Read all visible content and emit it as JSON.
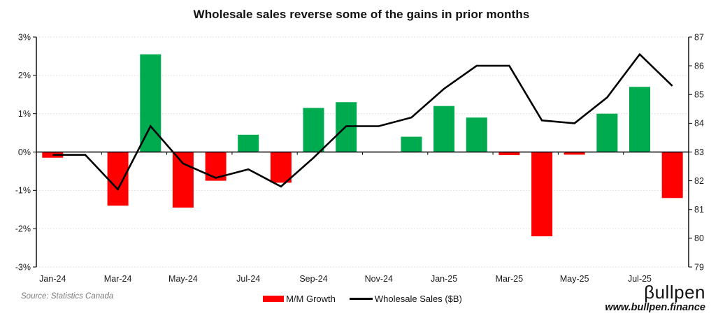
{
  "title": "Wholesale sales reverse some of the gains in prior months",
  "legend": {
    "items": [
      {
        "label": "M/M Growth",
        "swatch": "bar",
        "color": "#ff0000"
      },
      {
        "label": "Wholesale Sales ($B)",
        "swatch": "line",
        "color": "#000000"
      }
    ]
  },
  "footer": {
    "source": "Source: Statistics Canada",
    "brand_name": "βullpen",
    "brand_url": "www.bullpen.finance"
  },
  "colors": {
    "bar_positive": "#00ab50",
    "bar_negative": "#ff0000",
    "line": "#000000",
    "grid": "#d9d9d9",
    "axis": "#000000",
    "tick_text": "#1a1a1a",
    "source_text": "#7a7a7a"
  },
  "chart_data": {
    "type": "bar+line combo",
    "title": "Wholesale sales reverse some of the gains in prior months",
    "categories": [
      "Jan-24",
      "Feb-24",
      "Mar-24",
      "Apr-24",
      "May-24",
      "Jun-24",
      "Jul-24",
      "Aug-24",
      "Sep-24",
      "Oct-24",
      "Nov-24",
      "Dec-24",
      "Jan-25",
      "Feb-25",
      "Mar-25",
      "Apr-25",
      "May-25",
      "Jun-25",
      "Jul-25",
      "Aug-25"
    ],
    "x_axis_tick_labels": [
      "Jan-24",
      "Mar-24",
      "May-24",
      "Jul-24",
      "Sep-24",
      "Nov-24",
      "Jan-25",
      "Mar-25",
      "May-25",
      "Jul-25"
    ],
    "series": [
      {
        "name": "M/M Growth",
        "type": "bar",
        "axis": "left",
        "unit": "%",
        "values": [
          -0.15,
          0.0,
          -1.4,
          2.55,
          -1.45,
          -0.75,
          0.45,
          -0.8,
          1.15,
          1.3,
          0.0,
          0.4,
          1.2,
          0.9,
          -0.08,
          -2.2,
          -0.07,
          1.0,
          1.7,
          -1.2
        ]
      },
      {
        "name": "Wholesale Sales ($B)",
        "type": "line",
        "axis": "right",
        "unit": "$B",
        "values": [
          82.9,
          82.9,
          81.7,
          83.9,
          82.6,
          82.1,
          82.4,
          81.8,
          82.8,
          83.9,
          83.9,
          84.2,
          85.2,
          86.0,
          86.0,
          84.1,
          84.0,
          84.9,
          86.4,
          85.3
        ]
      }
    ],
    "left_axis": {
      "ticks": [
        "3%",
        "2%",
        "1%",
        "0%",
        "-1%",
        "-2%",
        "-3%"
      ],
      "min": -3,
      "max": 3
    },
    "right_axis": {
      "ticks": [
        "87",
        "86",
        "85",
        "84",
        "83",
        "82",
        "81",
        "80",
        "79"
      ],
      "min": 79,
      "max": 87
    },
    "grid": {
      "horizontal": "dotted",
      "legend_position": "bottom-center"
    }
  }
}
